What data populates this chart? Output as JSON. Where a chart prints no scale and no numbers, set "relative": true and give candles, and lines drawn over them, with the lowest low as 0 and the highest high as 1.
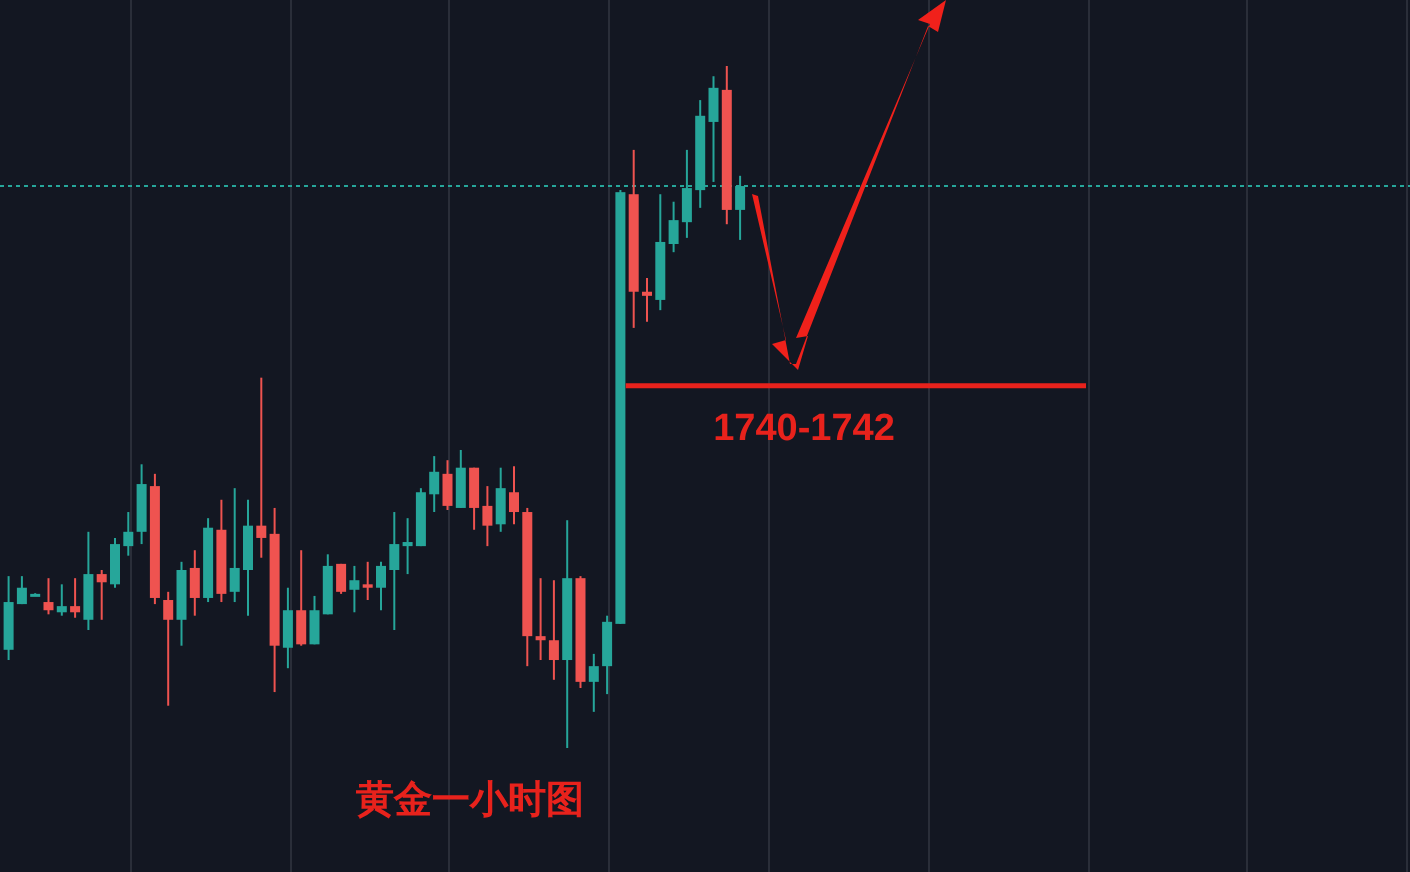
{
  "chart_data": {
    "type": "candlestick",
    "relative": true,
    "title": "黄金一小时图",
    "grid": "x",
    "categories": [
      null,
      null,
      null,
      null,
      null,
      null,
      null,
      null,
      null,
      null,
      null,
      null,
      null,
      null,
      null,
      null,
      null,
      null,
      null,
      null,
      null,
      null,
      null,
      null,
      null,
      null,
      null,
      null,
      null,
      null,
      null,
      null,
      null,
      null,
      null,
      null,
      null,
      null,
      null,
      null,
      null,
      null,
      null,
      null,
      null,
      null,
      null,
      null,
      null,
      null,
      null,
      null,
      null,
      null,
      null,
      null
    ],
    "ohlc": [
      [
        0.144,
        0.252,
        0.129,
        0.214
      ],
      [
        0.211,
        0.252,
        0.211,
        0.235
      ],
      [
        0.224,
        0.227,
        0.223,
        0.226
      ],
      [
        0.214,
        0.249,
        0.196,
        0.202
      ],
      [
        0.199,
        0.24,
        0.194,
        0.208
      ],
      [
        0.208,
        0.249,
        0.191,
        0.199
      ],
      [
        0.188,
        0.317,
        0.173,
        0.255
      ],
      [
        0.255,
        0.261,
        0.188,
        0.243
      ],
      [
        0.24,
        0.308,
        0.235,
        0.299
      ],
      [
        0.296,
        0.346,
        0.282,
        0.317
      ],
      [
        0.317,
        0.416,
        0.299,
        0.387
      ],
      [
        0.384,
        0.402,
        0.211,
        0.22
      ],
      [
        0.217,
        0.229,
        0.062,
        0.188
      ],
      [
        0.188,
        0.273,
        0.15,
        0.261
      ],
      [
        0.264,
        0.29,
        0.194,
        0.22
      ],
      [
        0.22,
        0.337,
        0.214,
        0.323
      ],
      [
        0.32,
        0.364,
        0.214,
        0.226
      ],
      [
        0.229,
        0.381,
        0.214,
        0.264
      ],
      [
        0.261,
        0.364,
        0.194,
        0.326
      ],
      [
        0.326,
        0.543,
        0.279,
        0.308
      ],
      [
        0.314,
        0.352,
        0.082,
        0.15
      ],
      [
        0.147,
        0.235,
        0.117,
        0.202
      ],
      [
        0.202,
        0.29,
        0.15,
        0.152
      ],
      [
        0.152,
        0.223,
        0.152,
        0.202
      ],
      [
        0.196,
        0.284,
        0.196,
        0.267
      ],
      [
        0.27,
        0.27,
        0.226,
        0.229
      ],
      [
        0.232,
        0.267,
        0.199,
        0.246
      ],
      [
        0.24,
        0.273,
        0.217,
        0.235
      ],
      [
        0.235,
        0.273,
        0.202,
        0.267
      ],
      [
        0.261,
        0.346,
        0.173,
        0.299
      ],
      [
        0.296,
        0.337,
        0.255,
        0.302
      ],
      [
        0.296,
        0.381,
        0.296,
        0.375
      ],
      [
        0.372,
        0.428,
        0.346,
        0.405
      ],
      [
        0.402,
        0.422,
        0.349,
        0.355
      ],
      [
        0.352,
        0.437,
        0.352,
        0.411
      ],
      [
        0.411,
        0.411,
        0.32,
        0.352
      ],
      [
        0.355,
        0.384,
        0.296,
        0.326
      ],
      [
        0.328,
        0.411,
        0.317,
        0.381
      ],
      [
        0.375,
        0.413,
        0.328,
        0.346
      ],
      [
        0.346,
        0.352,
        0.12,
        0.164
      ],
      [
        0.164,
        0.249,
        0.129,
        0.158
      ],
      [
        0.158,
        0.246,
        0.1,
        0.129
      ],
      [
        0.129,
        0.334,
        0,
        0.249
      ],
      [
        0.249,
        0.252,
        0.088,
        0.097
      ],
      [
        0.097,
        0.138,
        0.053,
        0.12
      ],
      [
        0.12,
        0.194,
        0.079,
        0.185
      ],
      [
        0.182,
        0.818,
        0.182,
        0.815
      ],
      [
        0.812,
        0.877,
        0.616,
        0.669
      ],
      [
        0.669,
        0.689,
        0.625,
        0.663
      ],
      [
        0.657,
        0.812,
        0.642,
        0.742
      ],
      [
        0.739,
        0.801,
        0.727,
        0.774
      ],
      [
        0.771,
        0.877,
        0.748,
        0.821
      ],
      [
        0.818,
        0.95,
        0.792,
        0.927
      ],
      [
        0.918,
        0.985,
        0.83,
        0.968
      ],
      [
        0.965,
        1,
        0.768,
        0.789
      ],
      [
        0.789,
        0.839,
        0.745,
        0.824
      ]
    ],
    "annotations": [
      "1740-1742"
    ],
    "ref_lines": [
      {
        "axis": "y",
        "value": 0.531,
        "color": "#e8221c",
        "line_style": "solid"
      },
      {
        "axis": "y",
        "value": 0.824,
        "color": "#26a69a",
        "line_style": "dotted"
      }
    ]
  }
}
